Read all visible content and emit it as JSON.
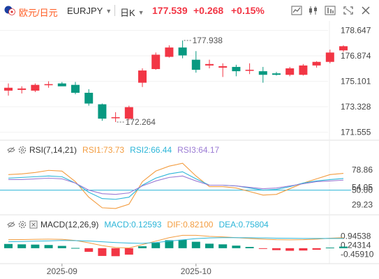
{
  "header": {
    "pair_label": "欧元/日元",
    "symbol": "EURJPY",
    "timeframe": "日K",
    "price": "177.539",
    "change": "+0.268",
    "change_pct": "+0.15%",
    "up_color": "#f23645",
    "down_color": "#089981"
  },
  "toolbar": {
    "icons": [
      "line-chart-icon",
      "candlestick-icon",
      "indicators-icon",
      "fullscreen-icon",
      "close-icon"
    ]
  },
  "chart_data": [
    {
      "type": "candlestick",
      "ylim": [
        171.0,
        179.3
      ],
      "y_ticks": [
        "178.647",
        "176.874",
        "175.101",
        "173.328",
        "171.555"
      ],
      "x_ticks": [
        "2025-09",
        "2025-10"
      ],
      "annotations": {
        "max": "177.938",
        "min": "172.264"
      },
      "up_color": "#f23645",
      "down_color": "#089981",
      "candles": [
        {
          "o": 174.45,
          "h": 174.95,
          "l": 174.1,
          "c": 174.65
        },
        {
          "o": 174.5,
          "h": 174.75,
          "l": 174.25,
          "c": 174.6
        },
        {
          "o": 174.45,
          "h": 174.95,
          "l": 174.35,
          "c": 174.85
        },
        {
          "o": 174.85,
          "h": 175.1,
          "l": 174.65,
          "c": 174.9
        },
        {
          "o": 174.95,
          "h": 175.05,
          "l": 174.8,
          "c": 174.75
        },
        {
          "o": 174.85,
          "h": 175.05,
          "l": 174.2,
          "c": 174.3
        },
        {
          "o": 174.3,
          "h": 174.55,
          "l": 173.4,
          "c": 173.55
        },
        {
          "o": 173.5,
          "h": 173.55,
          "l": 172.35,
          "c": 172.5
        },
        {
          "o": 172.55,
          "h": 172.95,
          "l": 172.264,
          "c": 172.6
        },
        {
          "o": 172.5,
          "h": 173.4,
          "l": 172.4,
          "c": 173.3
        },
        {
          "o": 175.0,
          "h": 176.0,
          "l": 174.7,
          "c": 175.85
        },
        {
          "o": 175.95,
          "h": 177.1,
          "l": 175.9,
          "c": 176.95
        },
        {
          "o": 176.8,
          "h": 177.6,
          "l": 176.75,
          "c": 177.45
        },
        {
          "o": 177.45,
          "h": 177.938,
          "l": 176.7,
          "c": 176.9
        },
        {
          "o": 176.6,
          "h": 177.2,
          "l": 175.7,
          "c": 175.9
        },
        {
          "o": 176.2,
          "h": 176.6,
          "l": 176.0,
          "c": 176.3
        },
        {
          "o": 176.05,
          "h": 176.35,
          "l": 175.4,
          "c": 176.15
        },
        {
          "o": 176.1,
          "h": 176.25,
          "l": 175.45,
          "c": 175.8
        },
        {
          "o": 175.9,
          "h": 176.35,
          "l": 175.6,
          "c": 175.9
        },
        {
          "o": 175.8,
          "h": 176.1,
          "l": 175.0,
          "c": 175.55
        },
        {
          "o": 175.65,
          "h": 175.75,
          "l": 175.5,
          "c": 175.55
        },
        {
          "o": 175.55,
          "h": 176.1,
          "l": 175.45,
          "c": 176.0
        },
        {
          "o": 175.55,
          "h": 176.3,
          "l": 175.5,
          "c": 176.2
        },
        {
          "o": 176.2,
          "h": 176.5,
          "l": 176.05,
          "c": 176.45
        },
        {
          "o": 176.45,
          "h": 177.3,
          "l": 176.35,
          "c": 177.1
        },
        {
          "o": 177.25,
          "h": 177.6,
          "l": 177.15,
          "c": 177.539
        }
      ]
    },
    {
      "type": "line",
      "name": "RSI",
      "label": "RSI(7,14,21)",
      "legend": [
        "RSI1:73.73",
        "RSI2:66.44",
        "RSI3:64.17"
      ],
      "ylim": [
        15,
        100
      ],
      "y_ticks": [
        "78.86",
        "54.05",
        "50.00",
        "29.23"
      ],
      "reference_line": 50.0,
      "series": [
        {
          "name": "RSI1",
          "color": "#f39c3f",
          "values": [
            72,
            73,
            75,
            78,
            77,
            62,
            40,
            25,
            24,
            30,
            62,
            77,
            84,
            88,
            70,
            55,
            55,
            53,
            48,
            43,
            44,
            52,
            60,
            66,
            72,
            73.73
          ]
        },
        {
          "name": "RSI2",
          "color": "#2bb5d8",
          "values": [
            67,
            68,
            69,
            70,
            69,
            60,
            47,
            38,
            37,
            40,
            57,
            67,
            73,
            76,
            66,
            57,
            57,
            56,
            53,
            50,
            51,
            55,
            60,
            63,
            65,
            66.44
          ]
        },
        {
          "name": "RSI3",
          "color": "#9b7bd4",
          "values": [
            65,
            65,
            66,
            67,
            66,
            60,
            50,
            45,
            44,
            46,
            56,
            63,
            68,
            70,
            63,
            57,
            57,
            56,
            54,
            52,
            53,
            56,
            59,
            62,
            63,
            64.17
          ]
        }
      ]
    },
    {
      "type": "bar",
      "name": "MACD",
      "label": "MACD(12,26,9)",
      "legend": [
        "MACD:0.12593",
        "DIF:0.82100",
        "DEA:0.75804"
      ],
      "ylim": [
        -1.2,
        1.4
      ],
      "y_ticks": [
        "0.94538",
        "0.24314",
        "-0.45910"
      ],
      "histogram": [
        0.33,
        0.3,
        0.28,
        0.25,
        0.18,
        0.02,
        -0.28,
        -0.6,
        -0.62,
        -0.5,
        0.15,
        0.42,
        0.62,
        0.65,
        0.5,
        0.35,
        0.3,
        0.2,
        0.1,
        -0.05,
        -0.15,
        -0.2,
        -0.18,
        -0.12,
        0.05,
        0.126
      ],
      "dif": [
        0.66,
        0.67,
        0.69,
        0.7,
        0.69,
        0.6,
        0.42,
        0.2,
        0.05,
        0.02,
        0.28,
        0.55,
        0.82,
        1.0,
        1.0,
        0.92,
        0.88,
        0.82,
        0.76,
        0.7,
        0.66,
        0.65,
        0.66,
        0.7,
        0.78,
        0.821
      ],
      "dea": [
        0.5,
        0.52,
        0.55,
        0.57,
        0.6,
        0.59,
        0.56,
        0.5,
        0.44,
        0.4,
        0.38,
        0.44,
        0.55,
        0.65,
        0.74,
        0.8,
        0.82,
        0.82,
        0.81,
        0.8,
        0.78,
        0.77,
        0.76,
        0.76,
        0.76,
        0.758
      ],
      "dif_color": "#f39c3f",
      "dea_color": "#2bb5d8"
    }
  ]
}
